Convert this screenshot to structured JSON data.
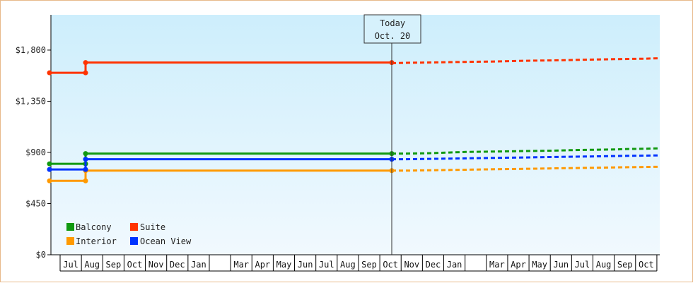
{
  "chart_data": {
    "type": "line",
    "y_tick_labels": [
      "$0",
      "$450",
      "$900",
      "$1,350",
      "$1,800"
    ],
    "y_ticks": [
      0,
      450,
      900,
      1350,
      1800
    ],
    "ylim": [
      0,
      2110
    ],
    "today": {
      "line1": "Today",
      "line2": "Oct. 20"
    },
    "months": [
      "Jul",
      "Aug",
      "Sep",
      "Oct",
      "Nov",
      "Dec",
      "Jan",
      "",
      "Mar",
      "Apr",
      "May",
      "Jun",
      "Jul",
      "Aug",
      "Sep",
      "Oct",
      "Nov",
      "Dec",
      "Jan",
      "",
      "Mar",
      "Apr",
      "May",
      "Jun",
      "Jul",
      "Aug",
      "Sep",
      "Oct"
    ],
    "legend_position": "bottom-left",
    "series": [
      {
        "name": "Balcony",
        "color": "#119911",
        "history_before": 800,
        "history_after": 890,
        "forecast": [
          890,
          890,
          892,
          895,
          900,
          904,
          906,
          908,
          910,
          912,
          914,
          916,
          920,
          922,
          924,
          926,
          930,
          932,
          936
        ]
      },
      {
        "name": "Suite",
        "color": "#ff3300",
        "history_before": 1600,
        "history_after": 1690,
        "forecast": [
          1685,
          1688,
          1690,
          1692,
          1694,
          1696,
          1698,
          1700,
          1703,
          1706,
          1708,
          1710,
          1712,
          1715,
          1718,
          1720,
          1722,
          1724,
          1728
        ]
      },
      {
        "name": "Interior",
        "color": "#ff9900",
        "history_before": 650,
        "history_after": 740,
        "forecast": [
          740,
          740,
          742,
          744,
          746,
          748,
          750,
          752,
          754,
          756,
          758,
          760,
          762,
          764,
          766,
          768,
          770,
          772,
          774
        ]
      },
      {
        "name": "Ocean View",
        "color": "#0033ff",
        "history_before": 750,
        "history_after": 840,
        "forecast": [
          840,
          840,
          842,
          844,
          846,
          848,
          850,
          852,
          854,
          856,
          858,
          860,
          862,
          864,
          866,
          868,
          870,
          872,
          874
        ]
      }
    ]
  }
}
